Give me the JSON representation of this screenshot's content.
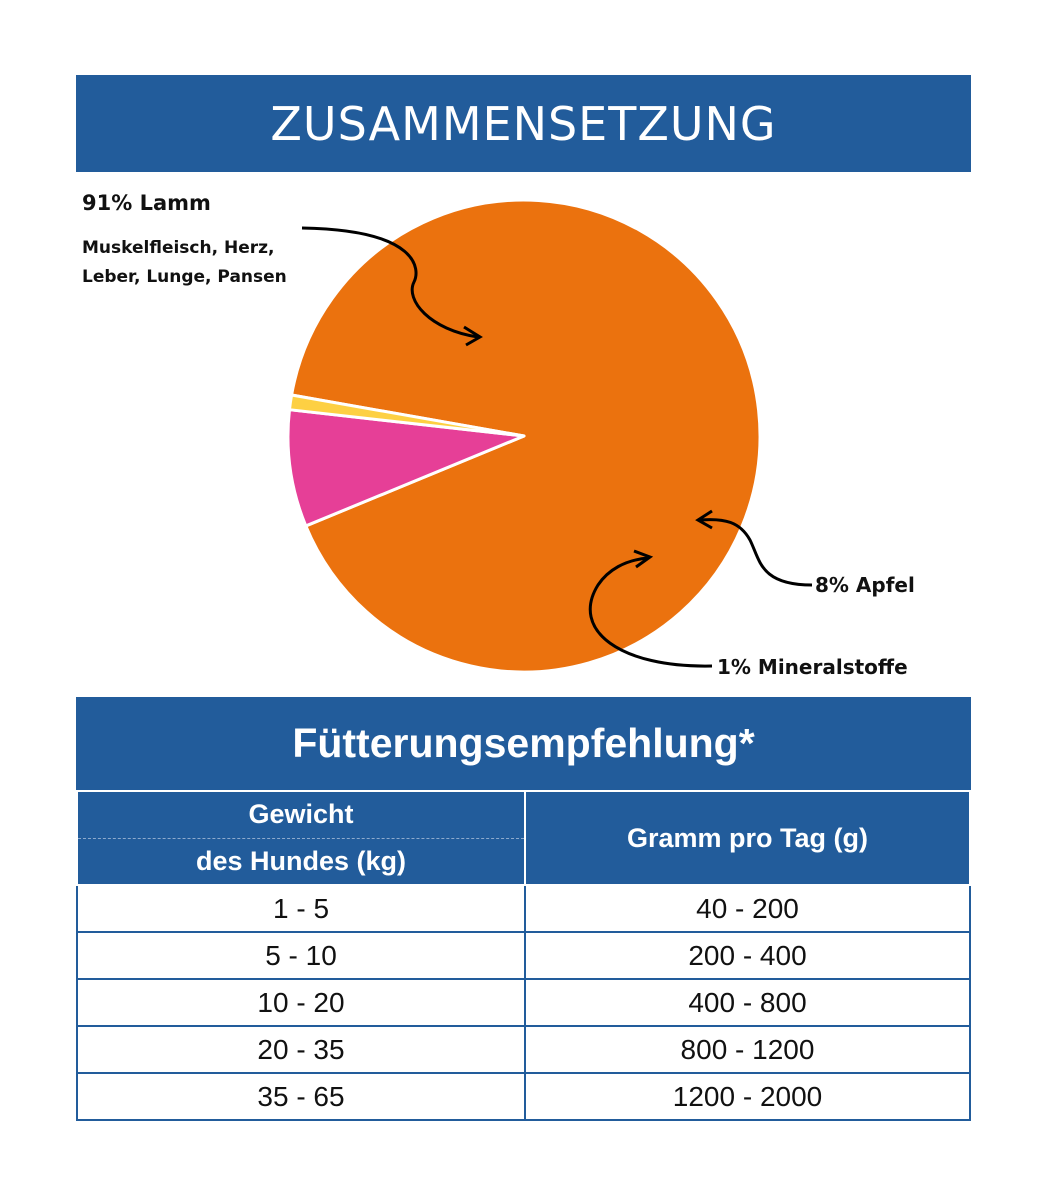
{
  "banner_title": "ZUSAMMENSETZUNG",
  "chart_data": {
    "type": "pie",
    "title": "",
    "slices": [
      {
        "label": "91% Lamm",
        "value": 91,
        "color": "#eb720e",
        "description": "Muskelfleisch, Herz, Leber, Lunge, Pansen"
      },
      {
        "label": "8% Apfel",
        "value": 8,
        "color": "#e63f97"
      },
      {
        "label": "1% Mineralstoffe",
        "value": 1,
        "color": "#fdd043"
      }
    ]
  },
  "feeding": {
    "title": "Fütterungsempfehlung*",
    "col1_line1": "Gewicht",
    "col1_line2": "des Hundes (kg)",
    "col2": "Gramm pro Tag (g)",
    "rows": [
      [
        "1 - 5",
        "40 - 200"
      ],
      [
        "5 - 10",
        "200 - 400"
      ],
      [
        "10 - 20",
        "400 - 800"
      ],
      [
        "20 - 35",
        "800 - 1200"
      ],
      [
        "35 - 65",
        "1200 - 2000"
      ]
    ]
  }
}
